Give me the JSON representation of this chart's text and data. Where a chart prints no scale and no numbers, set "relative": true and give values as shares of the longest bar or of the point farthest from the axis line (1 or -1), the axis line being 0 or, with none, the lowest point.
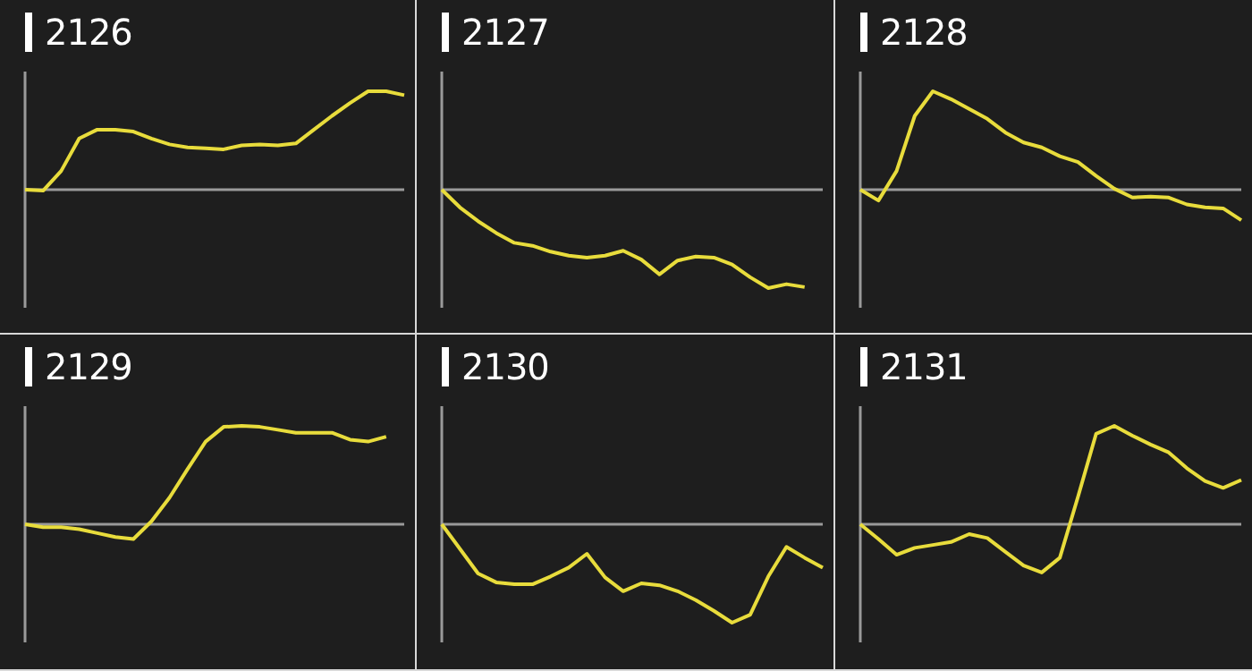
{
  "chart_data": [
    {
      "type": "line",
      "title": "2126",
      "relative": true,
      "tick_labels": false,
      "categories": [
        null,
        null,
        null,
        null,
        null,
        null,
        null,
        null,
        null,
        null,
        null,
        null,
        null,
        null,
        null,
        null,
        null,
        null,
        null,
        null,
        null,
        null
      ],
      "series": [
        {
          "color": "#e8dc3c",
          "values": [
            0,
            -0.01,
            0.19,
            0.52,
            0.61,
            0.61,
            0.59,
            0.52,
            0.46,
            0.43,
            0.42,
            0.41,
            0.45,
            0.46,
            0.45,
            0.47,
            0.61,
            0.75,
            0.88,
            1,
            1,
            0.96
          ]
        }
      ]
    },
    {
      "type": "line",
      "title": "2127",
      "relative": true,
      "tick_labels": false,
      "categories": [
        null,
        null,
        null,
        null,
        null,
        null,
        null,
        null,
        null,
        null,
        null,
        null,
        null,
        null,
        null,
        null,
        null,
        null,
        null,
        null,
        null,
        null
      ],
      "series": [
        {
          "color": "#e8dc3c",
          "values": [
            0,
            -0.18,
            -0.32,
            -0.44,
            -0.54,
            -0.57,
            -0.63,
            -0.67,
            -0.69,
            -0.67,
            -0.62,
            -0.71,
            -0.86,
            -0.72,
            -0.68,
            -0.69,
            -0.76,
            -0.89,
            -1,
            -0.96,
            -0.99,
            null
          ]
        }
      ]
    },
    {
      "type": "line",
      "title": "2128",
      "relative": true,
      "tick_labels": false,
      "categories": [
        null,
        null,
        null,
        null,
        null,
        null,
        null,
        null,
        null,
        null,
        null,
        null,
        null,
        null,
        null,
        null,
        null,
        null,
        null,
        null,
        null,
        null
      ],
      "series": [
        {
          "color": "#e8dc3c",
          "values": [
            0,
            -0.11,
            0.19,
            0.75,
            1,
            0.92,
            0.82,
            0.72,
            0.58,
            0.48,
            0.43,
            0.34,
            0.28,
            0.14,
            0.01,
            -0.08,
            -0.07,
            -0.08,
            -0.15,
            -0.18,
            -0.19,
            -0.31
          ]
        }
      ]
    },
    {
      "type": "line",
      "title": "2129",
      "relative": true,
      "tick_labels": false,
      "categories": [
        null,
        null,
        null,
        null,
        null,
        null,
        null,
        null,
        null,
        null,
        null,
        null,
        null,
        null,
        null,
        null,
        null,
        null,
        null,
        null,
        null,
        null
      ],
      "series": [
        {
          "color": "#e8dc3c",
          "values": [
            0,
            -0.03,
            -0.03,
            -0.05,
            -0.09,
            -0.13,
            -0.15,
            0.03,
            0.27,
            0.56,
            0.84,
            0.99,
            1,
            0.99,
            0.96,
            0.93,
            0.93,
            0.93,
            0.86,
            0.84,
            0.89,
            null
          ]
        }
      ]
    },
    {
      "type": "line",
      "title": "2130",
      "relative": true,
      "tick_labels": false,
      "categories": [
        null,
        null,
        null,
        null,
        null,
        null,
        null,
        null,
        null,
        null,
        null,
        null,
        null,
        null,
        null,
        null,
        null,
        null,
        null,
        null,
        null,
        null
      ],
      "series": [
        {
          "color": "#e8dc3c",
          "values": [
            0,
            -0.25,
            -0.5,
            -0.59,
            -0.61,
            -0.61,
            -0.53,
            -0.44,
            -0.3,
            -0.54,
            -0.68,
            -0.6,
            -0.62,
            -0.68,
            -0.77,
            -0.88,
            -1,
            -0.92,
            -0.53,
            -0.23,
            -0.34,
            -0.44
          ]
        }
      ]
    },
    {
      "type": "line",
      "title": "2131",
      "relative": true,
      "tick_labels": false,
      "categories": [
        null,
        null,
        null,
        null,
        null,
        null,
        null,
        null,
        null,
        null,
        null,
        null,
        null,
        null,
        null,
        null,
        null,
        null,
        null,
        null,
        null,
        null
      ],
      "series": [
        {
          "color": "#e8dc3c",
          "values": [
            0,
            -0.15,
            -0.31,
            -0.24,
            -0.21,
            -0.18,
            -0.1,
            -0.14,
            -0.28,
            -0.42,
            -0.49,
            -0.34,
            0.28,
            0.92,
            1,
            0.9,
            0.81,
            0.73,
            0.57,
            0.44,
            0.37,
            0.45
          ]
        }
      ]
    }
  ]
}
